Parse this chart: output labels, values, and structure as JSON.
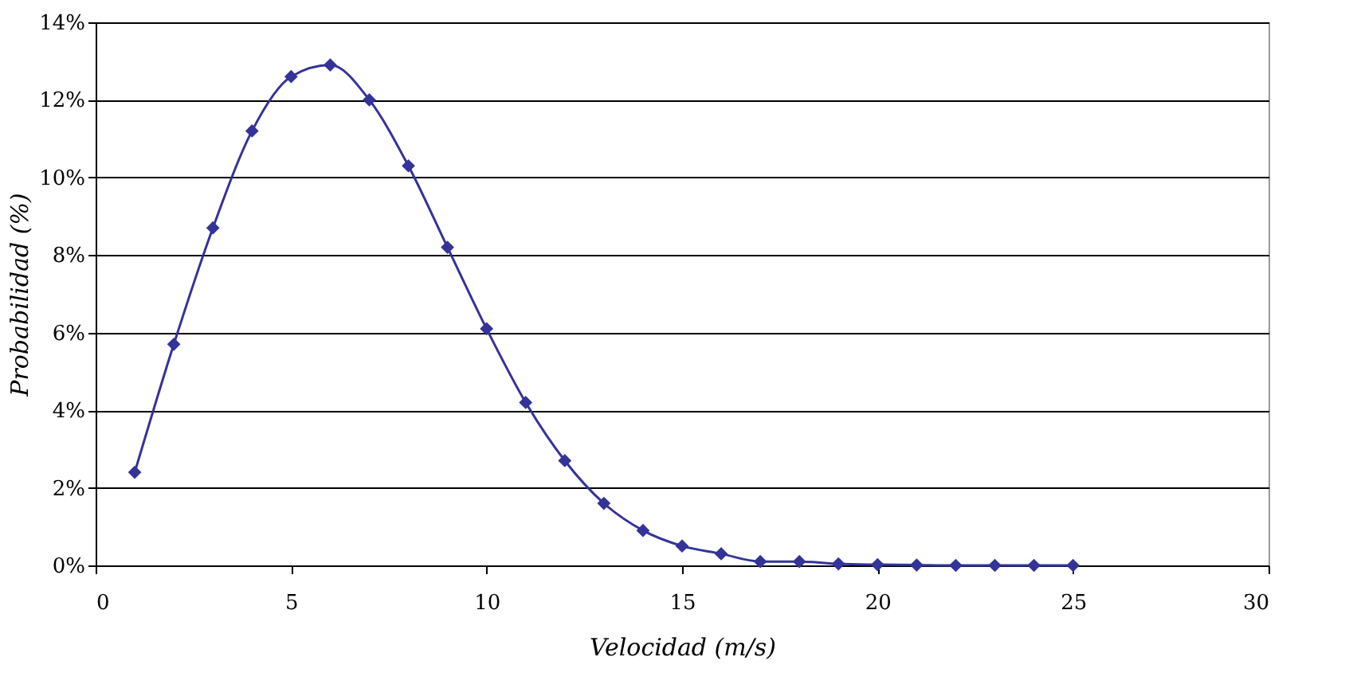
{
  "chart_data": {
    "type": "line",
    "xlabel": "Velocidad (m/s)",
    "ylabel": "Probabilidad (%)",
    "x": [
      1,
      2,
      3,
      4,
      5,
      6,
      7,
      8,
      9,
      10,
      11,
      12,
      13,
      14,
      15,
      16,
      17,
      18,
      19,
      20,
      21,
      22,
      23,
      24,
      25
    ],
    "series": [
      {
        "color": "#333399",
        "values": [
          2.4,
          5.7,
          8.7,
          11.2,
          12.6,
          12.9,
          12.0,
          10.3,
          8.2,
          6.1,
          4.2,
          2.7,
          1.6,
          0.9,
          0.5,
          0.3,
          0.1,
          0.1,
          0.04,
          0.02,
          0.01,
          0,
          0,
          0,
          0
        ]
      }
    ],
    "xlim": [
      0,
      30
    ],
    "xticks": [
      0,
      5,
      10,
      15,
      20,
      25,
      30
    ],
    "ylim": [
      0,
      14
    ],
    "yticks": [
      {
        "value": 0,
        "label": "0%"
      },
      {
        "value": 2,
        "label": "2%"
      },
      {
        "value": 4,
        "label": "4%"
      },
      {
        "value": 6,
        "label": "6%"
      },
      {
        "value": 8,
        "label": "8%"
      },
      {
        "value": 10,
        "label": "10%"
      },
      {
        "value": 12,
        "label": "12%"
      },
      {
        "value": 14,
        "label": "14%"
      }
    ],
    "grid": "y",
    "marker": "diamond",
    "line_style": "solid"
  }
}
